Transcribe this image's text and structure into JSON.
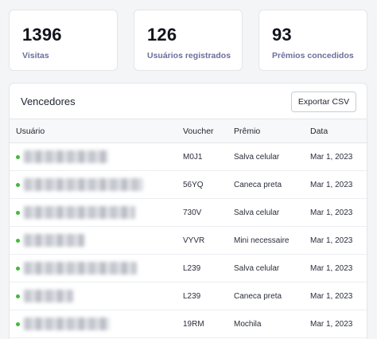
{
  "stats": [
    {
      "value": "1396",
      "label": "Visitas"
    },
    {
      "value": "126",
      "label": "Usuários registrados"
    },
    {
      "value": "93",
      "label": "Prêmios concedidos"
    }
  ],
  "winners": {
    "title": "Vencedores",
    "export_label": "Exportar CSV",
    "columns": {
      "user": "Usuário",
      "voucher": "Voucher",
      "prize": "Prêmio",
      "date": "Data"
    },
    "status_color": "#45b83c",
    "rows": [
      {
        "voucher": "M0J1",
        "prize": "Salva celular",
        "date": "Mar 1, 2023"
      },
      {
        "voucher": "56YQ",
        "prize": "Caneca preta",
        "date": "Mar 1, 2023"
      },
      {
        "voucher": "730V",
        "prize": "Salva celular",
        "date": "Mar 1, 2023"
      },
      {
        "voucher": "VYVR",
        "prize": "Mini necessaire",
        "date": "Mar 1, 2023"
      },
      {
        "voucher": "L239",
        "prize": "Salva celular",
        "date": "Mar 1, 2023"
      },
      {
        "voucher": "L239",
        "prize": "Caneca preta",
        "date": "Mar 1, 2023"
      },
      {
        "voucher": "19RM",
        "prize": "Mochila",
        "date": "Mar 1, 2023"
      }
    ]
  }
}
